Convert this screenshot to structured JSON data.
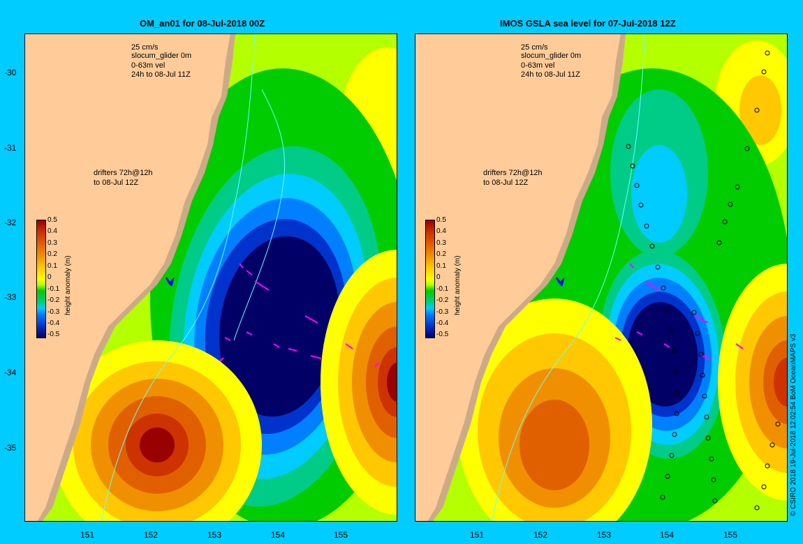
{
  "panels": [
    {
      "title": "OM_an01 for 08-Jul-2018 00Z",
      "legend": [
        "25 cm/s",
        "slocum_glider 0m",
        "0-63m vel",
        "24h to 08-Jul 11Z"
      ],
      "drifters": [
        "drifters 72h@12h",
        "to 08-Jul 12Z"
      ]
    },
    {
      "title": "IMOS GSLA sea level  for 07-Jul-2018 12Z",
      "legend": [
        "25 cm/s",
        "slocum_glider 0m",
        "0-63m vel",
        "24h to 08-Jul 11Z"
      ],
      "drifters": [
        "drifters 72h@12h",
        "to 08-Jul 12Z"
      ]
    }
  ],
  "axes": {
    "x_ticks": [
      "151",
      "152",
      "153",
      "154",
      "155"
    ],
    "y_ticks": [
      "-30",
      "-31",
      "-32",
      "-33",
      "-34",
      "-35"
    ]
  },
  "colorbar": {
    "label": "height anomaly (m)",
    "ticks": [
      "0.5",
      "0.4",
      "0.3",
      "0.2",
      "0.1",
      "0",
      "-0.1",
      "-0.2",
      "-0.3",
      "-0.4",
      "-0.5"
    ],
    "colors": [
      "#990000",
      "#cc3300",
      "#e06000",
      "#f09000",
      "#ffc800",
      "#ffff00",
      "#b4ff00",
      "#00cc00",
      "#00cc88",
      "#00ccff",
      "#0080ff",
      "#0033cc",
      "#000066"
    ]
  },
  "credit": "© CSIRO 2018   19-Jul-2018 12:02:54 BoM OceanMAPS v3",
  "colors": {
    "land": "#ffcc99",
    "shelf": "#ccaa88",
    "frame": "#00ccff",
    "isobath": "#66ffff",
    "vector": "#ff00ff",
    "glider": "#0000ff"
  }
}
